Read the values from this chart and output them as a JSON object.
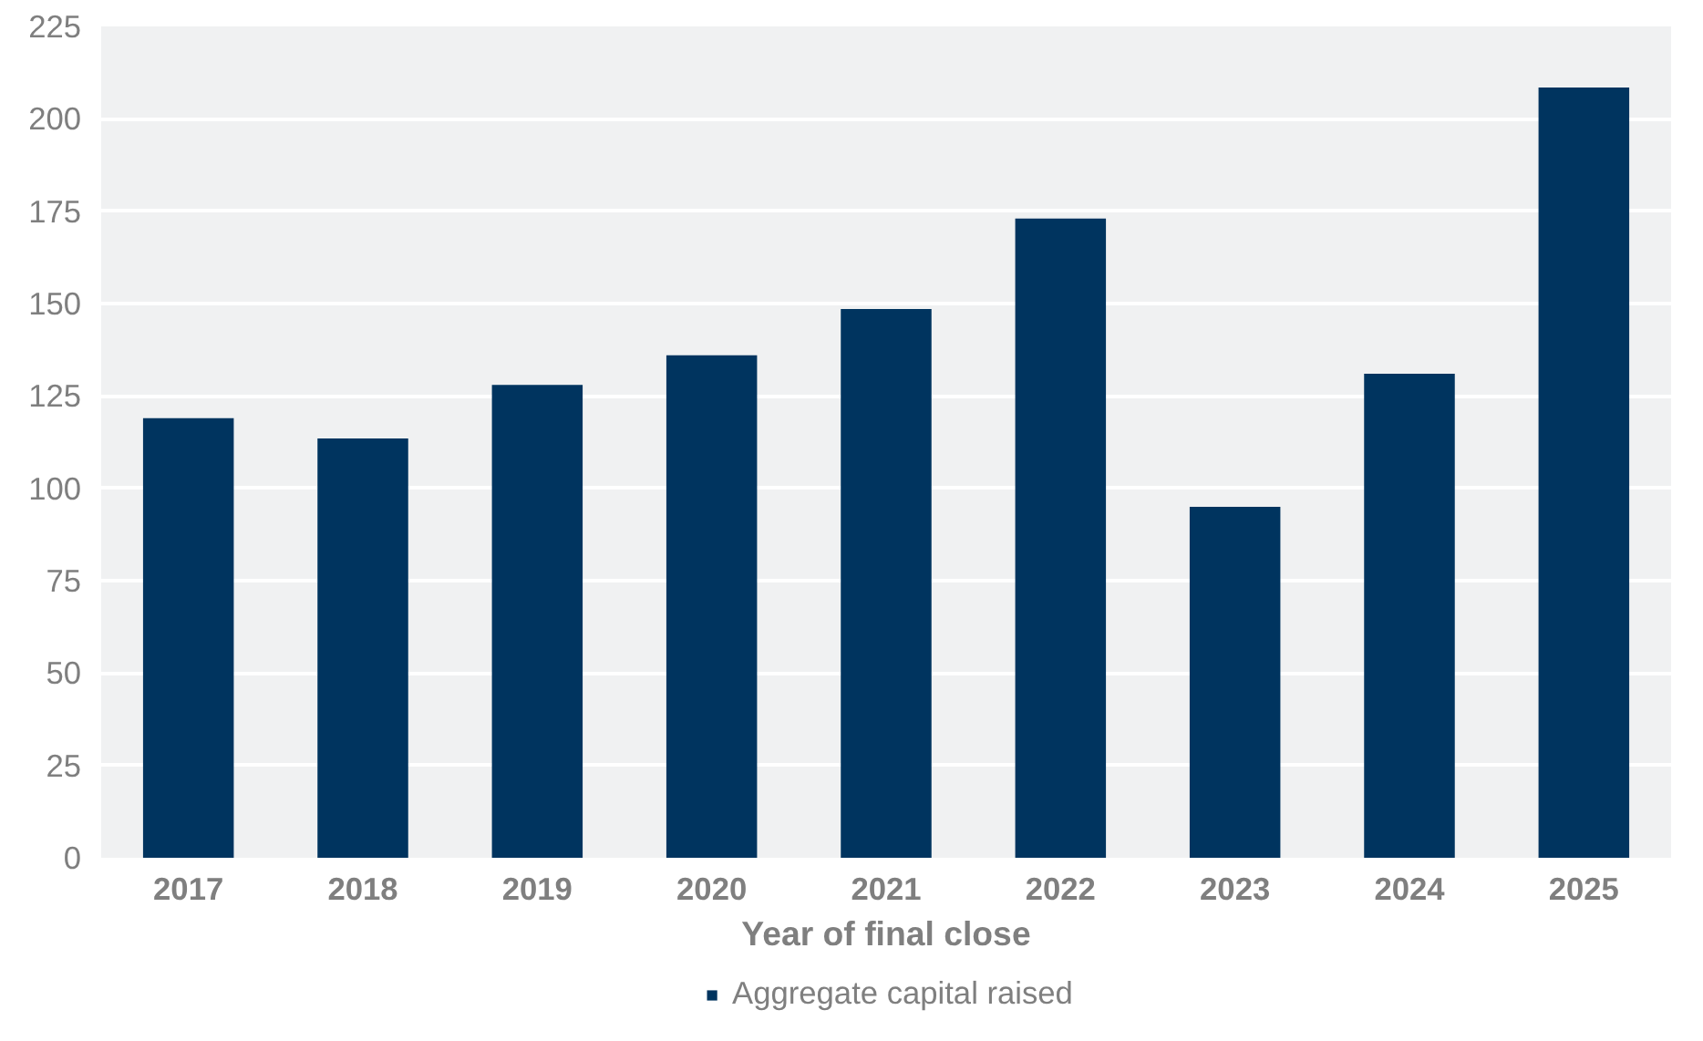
{
  "chart_data": {
    "type": "bar",
    "xlabel": "Year of final close",
    "categories": [
      "2017",
      "2018",
      "2019",
      "2020",
      "2021",
      "2022",
      "2023",
      "2024",
      "2025"
    ],
    "series": [
      {
        "name": "Aggregate capital raised",
        "color": "#00345f",
        "values": [
          119,
          113.5,
          128,
          136,
          148.5,
          173,
          95,
          131,
          208.5
        ]
      }
    ],
    "ylim": [
      0,
      225
    ],
    "yticks": [
      0,
      25,
      50,
      75,
      100,
      125,
      150,
      175,
      200,
      225
    ],
    "grid": "y",
    "legend": "bottom"
  }
}
